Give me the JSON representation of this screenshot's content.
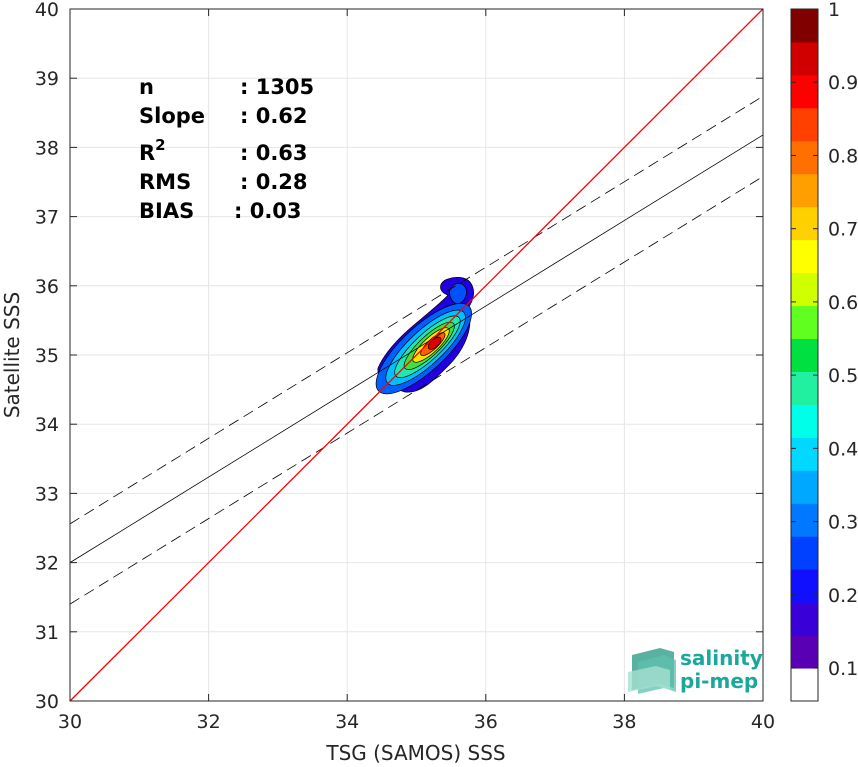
{
  "chart_data": {
    "type": "scatter",
    "title": "",
    "xlabel": "TSG (SAMOS) SSS",
    "ylabel": "Satellite SSS",
    "xlim": [
      30,
      40
    ],
    "ylim": [
      30,
      40
    ],
    "xticks": [
      "30",
      "32",
      "34",
      "36",
      "38",
      "40"
    ],
    "yticks": [
      "30",
      "31",
      "32",
      "33",
      "34",
      "35",
      "36",
      "37",
      "38",
      "39",
      "40"
    ],
    "grid": true,
    "stats": [
      {
        "label": "n",
        "value": ": 1305"
      },
      {
        "label": "Slope",
        "value": ": 0.62"
      },
      {
        "label": "R",
        "sup": "2",
        "value": ": 0.63"
      },
      {
        "label": "RMS",
        "value": ": 0.28"
      },
      {
        "label": "BIAS",
        "value": ": 0.03"
      }
    ],
    "lines": {
      "identity": {
        "slope": 1.0,
        "intercept": 0,
        "color": "#ff0000"
      },
      "fit": {
        "x": [
          30,
          40
        ],
        "y": [
          32.0,
          38.18
        ]
      },
      "upper_bound": {
        "x": [
          30,
          40
        ],
        "y": [
          32.56,
          38.74
        ]
      },
      "lower_bound": {
        "x": [
          30,
          40
        ],
        "y": [
          31.4,
          37.58
        ]
      }
    },
    "density": {
      "center": [
        35.25,
        35.15
      ],
      "levels": [
        0.05,
        0.2,
        0.35,
        0.5,
        0.65,
        0.8,
        0.95
      ]
    },
    "colorbar": {
      "ticks": [
        "0.1",
        "0.2",
        "0.3",
        "0.4",
        "0.5",
        "0.6",
        "0.7",
        "0.8",
        "0.9",
        "1"
      ],
      "colors": [
        "#ffffff",
        "#5a00b4",
        "#3a00d8",
        "#1010ff",
        "#0040ff",
        "#0078ff",
        "#00a8ff",
        "#00d8ff",
        "#00ffe8",
        "#20f0a0",
        "#00e040",
        "#60ff20",
        "#d0ff00",
        "#ffff00",
        "#ffd000",
        "#ffa000",
        "#ff7000",
        "#ff4000",
        "#ff0000",
        "#d00000",
        "#800000"
      ]
    }
  },
  "logo": {
    "line1": "salinity",
    "line2": "pi-mep"
  }
}
